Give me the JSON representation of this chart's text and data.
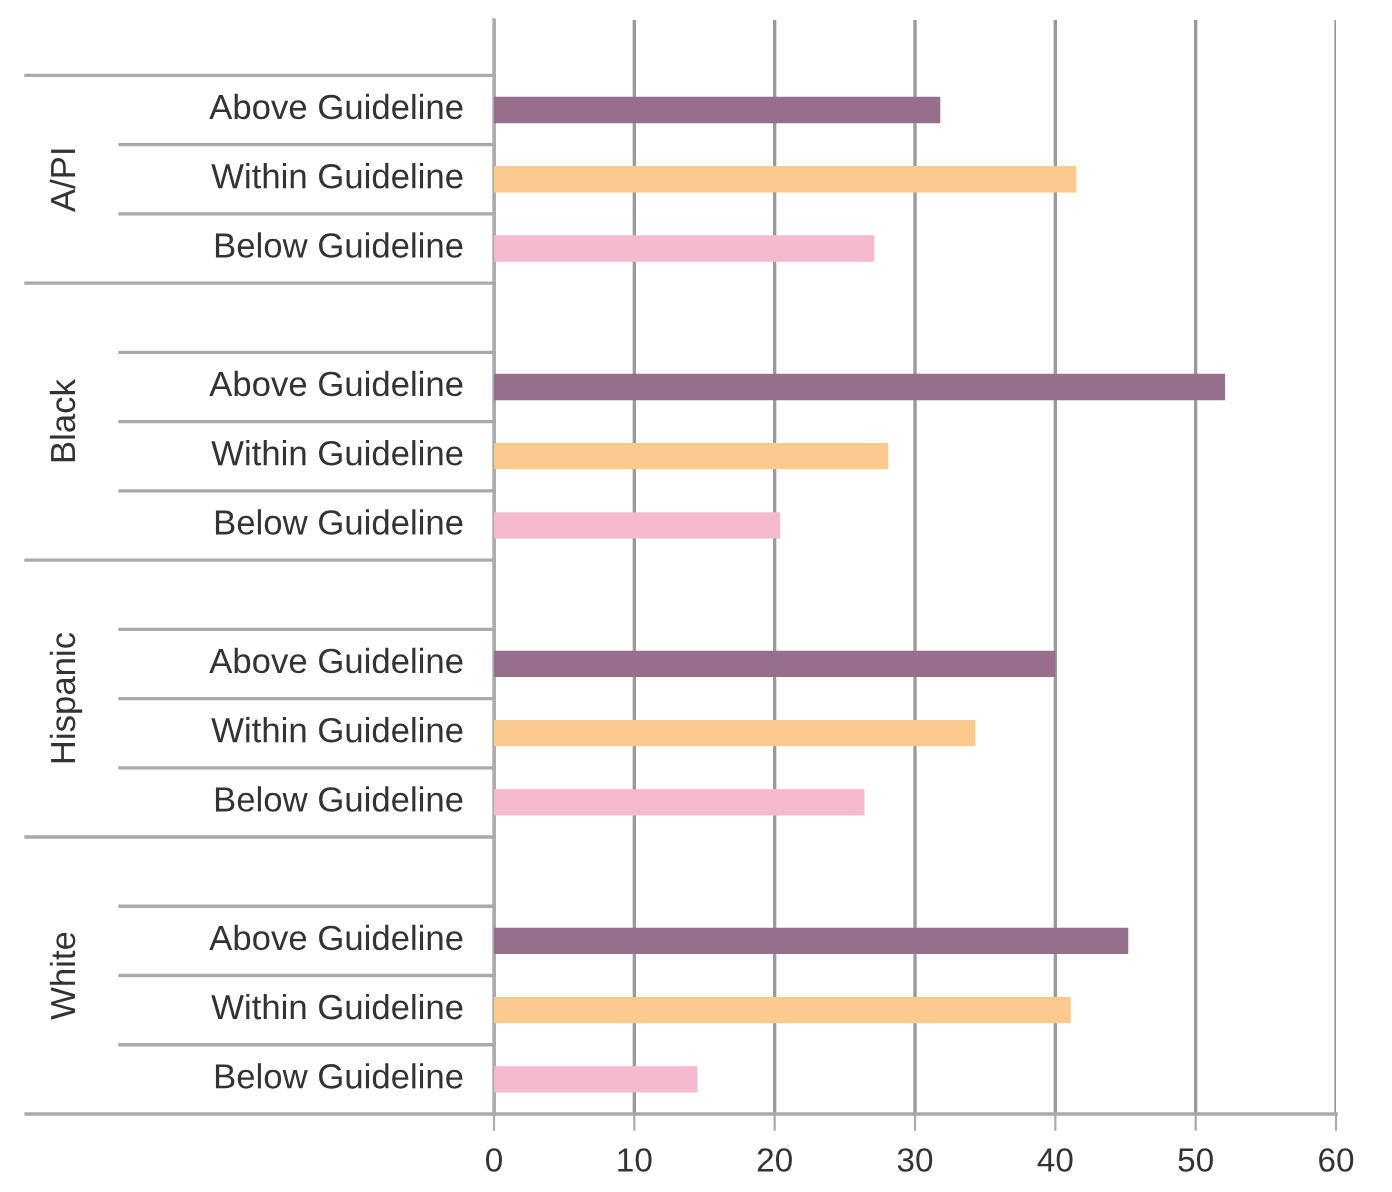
{
  "chart_data": {
    "type": "bar",
    "orientation": "horizontal",
    "categories": [
      "Above Guideline",
      "Within Guideline",
      "Below Guideline",
      null,
      "Above Guideline",
      "Within Guideline",
      "Below Guideline",
      null,
      "Above Guideline",
      "Within Guideline",
      "Below Guideline",
      null,
      "Above Guideline",
      "Within Guideline",
      "Below Guideline"
    ],
    "values": [
      31.8,
      41.5,
      27.1,
      null,
      52.1,
      28.1,
      20.4,
      null,
      40.0,
      34.3,
      26.4,
      null,
      45.2,
      41.1,
      14.5
    ],
    "colors": [
      "#966f8c",
      "#fcca8e",
      "#f5bad0",
      null,
      "#966f8c",
      "#fcca8e",
      "#f5bad0",
      null,
      "#966f8c",
      "#fcca8e",
      "#f5bad0",
      null,
      "#966f8c",
      "#fcca8e",
      "#f5bad0"
    ],
    "annotations": [
      "A/PI",
      "Black",
      "Hispanic",
      "White"
    ],
    "xlim": [
      0,
      60
    ],
    "xticks": [
      0,
      10,
      20,
      30,
      40,
      50,
      60
    ],
    "grid": "x"
  }
}
